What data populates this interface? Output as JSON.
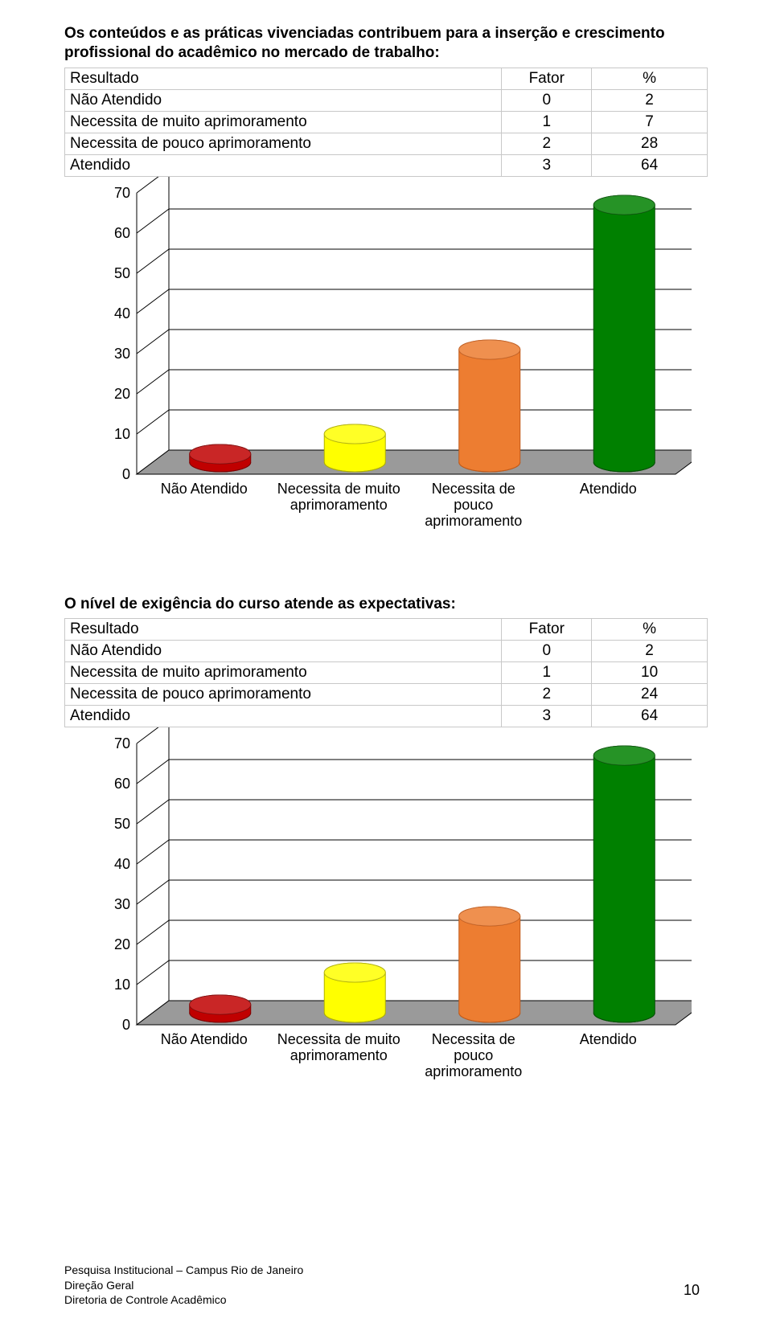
{
  "section1": {
    "heading": "Os conteúdos e as práticas vivenciadas contribuem para a inserção e crescimento profissional do acadêmico no mercado de trabalho:",
    "table": {
      "headers": {
        "result": "Resultado",
        "fator": "Fator",
        "pct": "%"
      },
      "rows": [
        {
          "label": "Não Atendido",
          "fator": "0",
          "pct": "2"
        },
        {
          "label": "Necessita de muito aprimoramento",
          "fator": "1",
          "pct": "7"
        },
        {
          "label": "Necessita de pouco aprimoramento",
          "fator": "2",
          "pct": "28"
        },
        {
          "label": "Atendido",
          "fator": "3",
          "pct": "64"
        }
      ]
    },
    "chart": {
      "type": "bar-3d-cylinder",
      "categories": [
        "Não Atendido",
        "Necessita de muito\naprimoramento",
        "Necessita de\npouco\naprimoramento",
        "Atendido"
      ],
      "values": [
        2,
        7,
        28,
        64
      ],
      "bar_colors": [
        "#c00000",
        "#ffff00",
        "#ed7d31",
        "#008000"
      ],
      "bar_stroke": [
        "#800000",
        "#b0b000",
        "#c05a1a",
        "#005000"
      ],
      "ylim": [
        0,
        70
      ],
      "ytick_step": 10,
      "background_color": "#ffffff",
      "floor_color": "#9a9a9a",
      "grid_color": "#000000",
      "axis_font_size": 18,
      "label_font_size": 18
    }
  },
  "section2": {
    "heading": "O nível de exigência do curso atende as expectativas:",
    "table": {
      "headers": {
        "result": "Resultado",
        "fator": "Fator",
        "pct": "%"
      },
      "rows": [
        {
          "label": "Não Atendido",
          "fator": "0",
          "pct": "2"
        },
        {
          "label": "Necessita de muito aprimoramento",
          "fator": "1",
          "pct": "10"
        },
        {
          "label": "Necessita de pouco aprimoramento",
          "fator": "2",
          "pct": "24"
        },
        {
          "label": "Atendido",
          "fator": "3",
          "pct": "64"
        }
      ]
    },
    "chart": {
      "type": "bar-3d-cylinder",
      "categories": [
        "Não Atendido",
        "Necessita de muito\naprimoramento",
        "Necessita de\npouco\naprimoramento",
        "Atendido"
      ],
      "values": [
        2,
        10,
        24,
        64
      ],
      "bar_colors": [
        "#c00000",
        "#ffff00",
        "#ed7d31",
        "#008000"
      ],
      "bar_stroke": [
        "#800000",
        "#b0b000",
        "#c05a1a",
        "#005000"
      ],
      "ylim": [
        0,
        70
      ],
      "ytick_step": 10,
      "background_color": "#ffffff",
      "floor_color": "#9a9a9a",
      "grid_color": "#000000",
      "axis_font_size": 18,
      "label_font_size": 18
    }
  },
  "footer": {
    "line1": "Pesquisa Institucional – Campus Rio de Janeiro",
    "line2": "Direção Geral",
    "line3": "Diretoria de Controle Acadêmico"
  },
  "page_number": "10"
}
